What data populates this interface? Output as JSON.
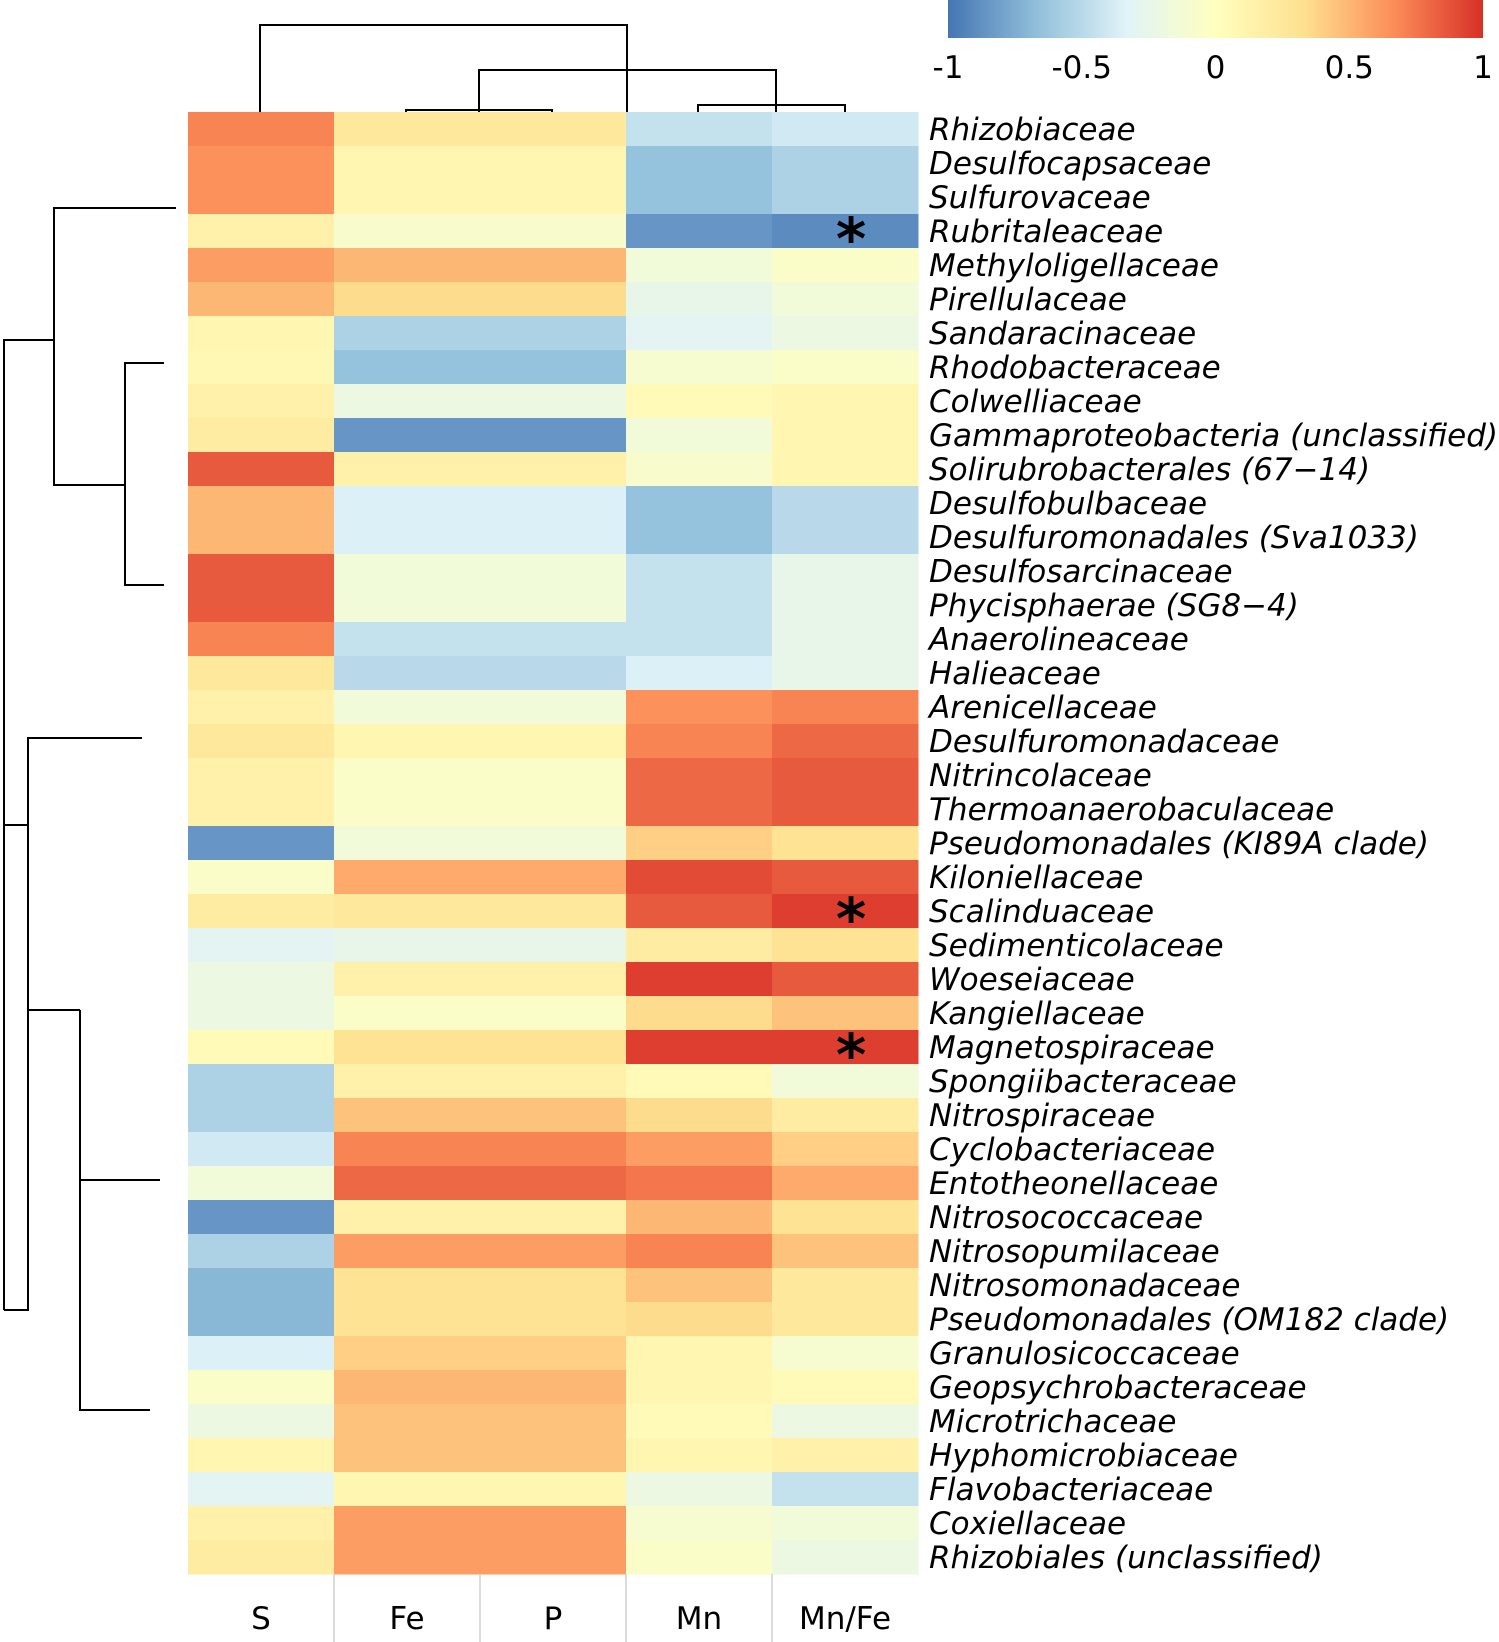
{
  "chart_data": {
    "type": "heatmap",
    "title": "",
    "columns": [
      "S",
      "Fe",
      "P",
      "Mn",
      "Mn/Fe"
    ],
    "rows": [
      "Rhizobiaceae",
      "Desulfocapsaceae",
      "Sulfurovaceae",
      "Rubritaleaceae",
      "Methyloligellaceae",
      "Pirellulaceae",
      "Sandaracinaceae",
      "Rhodobacteraceae",
      "Colwelliaceae",
      "Gammaproteobacteria (unclassified)",
      "Solirubrobacterales (67−14)",
      "Desulfobulbaceae",
      "Desulfuromonadales (Sva1033)",
      "Desulfosarcinaceae",
      "Phycisphaerae (SG8−4)",
      "Anaerolineaceae",
      "Halieaceae",
      "Arenicellaceae",
      "Desulfuromonadaceae",
      "Nitrincolaceae",
      "Thermoanaerobaculaceae",
      "Pseudomonadales (KI89A clade)",
      "Kiloniellaceae",
      "Scalinduaceae",
      "Sedimenticolaceae",
      "Woeseiaceae",
      "Kangiellaceae",
      "Magnetospiraceae",
      "Spongiibacteraceae",
      "Nitrospiraceae",
      "Cyclobacteriaceae",
      "Entotheonellaceae",
      "Nitrosococcaceae",
      "Nitrosopumilaceae",
      "Nitrosomonadaceae",
      "Pseudomonadales (OM182 clade)",
      "Granulosicoccaceae",
      "Geopsychrobacteraceae",
      "Microtrichaceae",
      "Hyphomicrobiaceae",
      "Flavobacteriaceae",
      "Coxiellaceae",
      "Rhizobiales (unclassified)"
    ],
    "values": [
      [
        0.7,
        0.25,
        0.25,
        -0.45,
        -0.4
      ],
      [
        0.65,
        0.1,
        0.1,
        -0.65,
        -0.55
      ],
      [
        0.65,
        0.1,
        0.1,
        -0.65,
        -0.55
      ],
      [
        0.15,
        -0.08,
        -0.08,
        -0.85,
        -0.9
      ],
      [
        0.6,
        0.5,
        0.5,
        -0.15,
        -0.05
      ],
      [
        0.5,
        0.35,
        0.35,
        -0.25,
        -0.15
      ],
      [
        0.1,
        -0.55,
        -0.55,
        -0.3,
        -0.2
      ],
      [
        0.08,
        -0.65,
        -0.65,
        -0.1,
        -0.05
      ],
      [
        0.15,
        -0.2,
        -0.2,
        0.05,
        0.1
      ],
      [
        0.2,
        -0.85,
        -0.85,
        -0.15,
        0.1
      ],
      [
        0.85,
        0.15,
        0.15,
        -0.08,
        0.1
      ],
      [
        0.5,
        -0.35,
        -0.35,
        -0.65,
        -0.5
      ],
      [
        0.5,
        -0.35,
        -0.35,
        -0.65,
        -0.5
      ],
      [
        0.85,
        -0.15,
        -0.15,
        -0.45,
        -0.25
      ],
      [
        0.85,
        -0.15,
        -0.15,
        -0.45,
        -0.25
      ],
      [
        0.7,
        -0.45,
        -0.45,
        -0.45,
        -0.25
      ],
      [
        0.25,
        -0.5,
        -0.5,
        -0.35,
        -0.25
      ],
      [
        0.15,
        -0.15,
        -0.15,
        0.65,
        0.7
      ],
      [
        0.25,
        0.1,
        0.1,
        0.7,
        0.8
      ],
      [
        0.15,
        -0.05,
        -0.05,
        0.8,
        0.85
      ],
      [
        0.15,
        -0.05,
        -0.05,
        0.8,
        0.85
      ],
      [
        -0.85,
        -0.15,
        -0.15,
        0.4,
        0.3
      ],
      [
        -0.05,
        0.55,
        0.55,
        0.9,
        0.85
      ],
      [
        0.2,
        0.25,
        0.25,
        0.85,
        0.95
      ],
      [
        -0.3,
        -0.25,
        -0.25,
        0.2,
        0.3
      ],
      [
        -0.2,
        0.15,
        0.15,
        0.95,
        0.85
      ],
      [
        -0.2,
        -0.05,
        -0.05,
        0.35,
        0.45
      ],
      [
        0.05,
        0.3,
        0.3,
        0.95,
        0.95
      ],
      [
        -0.55,
        0.15,
        0.15,
        0.05,
        -0.15
      ],
      [
        -0.55,
        0.45,
        0.45,
        0.35,
        0.2
      ],
      [
        -0.4,
        0.7,
        0.7,
        0.6,
        0.4
      ],
      [
        -0.15,
        0.8,
        0.8,
        0.75,
        0.55
      ],
      [
        -0.85,
        0.15,
        0.15,
        0.5,
        0.3
      ],
      [
        -0.55,
        0.6,
        0.6,
        0.7,
        0.45
      ],
      [
        -0.7,
        0.3,
        0.3,
        0.45,
        0.25
      ],
      [
        -0.7,
        0.3,
        0.3,
        0.35,
        0.25
      ],
      [
        -0.35,
        0.4,
        0.4,
        0.1,
        -0.1
      ],
      [
        -0.05,
        0.5,
        0.5,
        0.1,
        0.05
      ],
      [
        -0.2,
        0.45,
        0.45,
        0.05,
        -0.2
      ],
      [
        0.1,
        0.45,
        0.45,
        0.1,
        0.15
      ],
      [
        -0.3,
        0.1,
        0.1,
        -0.2,
        -0.45
      ],
      [
        0.15,
        0.6,
        0.6,
        -0.1,
        -0.15
      ],
      [
        0.2,
        0.6,
        0.6,
        -0.05,
        -0.2
      ]
    ],
    "significant": [
      {
        "row": "Rubritaleaceae",
        "column": "Mn/Fe",
        "mark": "*"
      },
      {
        "row": "Scalinduaceae",
        "column": "Mn/Fe",
        "mark": "*"
      },
      {
        "row": "Magnetospiraceae",
        "column": "Mn/Fe",
        "mark": "*"
      }
    ],
    "colorbar": {
      "range": [
        -1,
        1
      ],
      "ticks": [
        "-1",
        "-0.5",
        "0",
        "0.5",
        "1"
      ],
      "colors": [
        "#4575b4",
        "#91bfdb",
        "#e0f3f8",
        "#ffffbf",
        "#fee090",
        "#fc8d59",
        "#d73027"
      ]
    },
    "dendrogram": {
      "rows": true,
      "columns": true
    }
  }
}
